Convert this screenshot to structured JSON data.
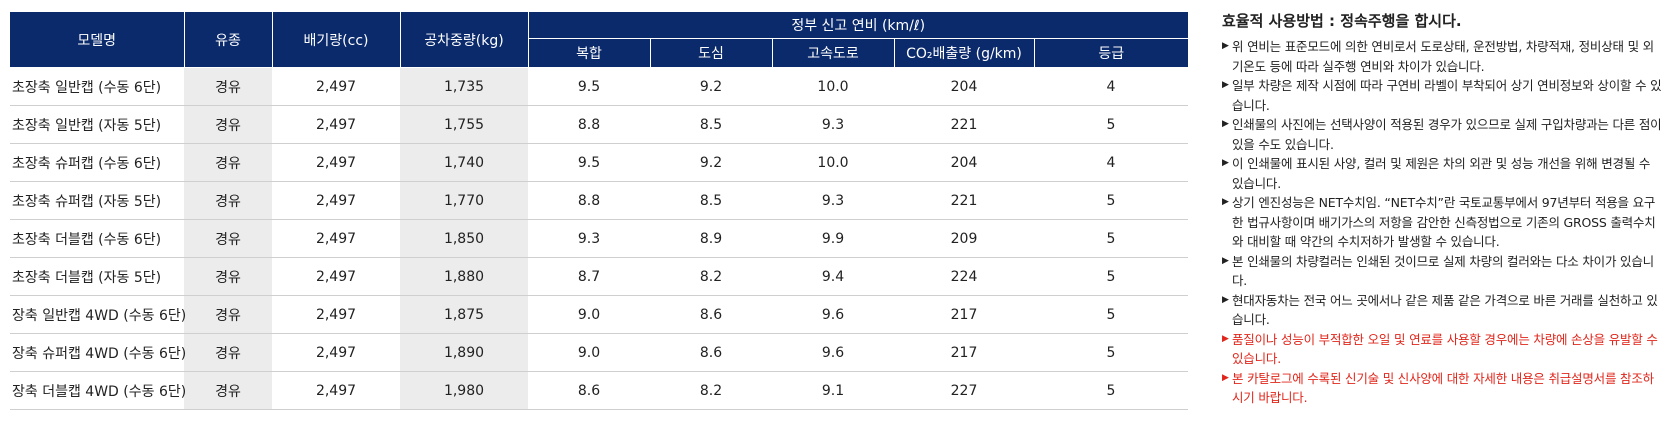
{
  "table": {
    "headers": {
      "model": "모델명",
      "fuel": "유종",
      "displacement": "배기량(cc)",
      "curb_weight": "공차중량(kg)",
      "efficiency_group": "정부 신고 연비 (km/ℓ)",
      "combined": "복합",
      "city": "도심",
      "highway": "고속도로",
      "co2": "CO₂배출량 (g/km)",
      "grade": "등급"
    },
    "rows": [
      {
        "model": "초장축 일반캡 (수동 6단)",
        "fuel": "경유",
        "displacement": "2,497",
        "weight": "1,735",
        "combined": "9.5",
        "city": "9.2",
        "highway": "10.0",
        "co2": "204",
        "grade": "4"
      },
      {
        "model": "초장축 일반캡 (자동 5단)",
        "fuel": "경유",
        "displacement": "2,497",
        "weight": "1,755",
        "combined": "8.8",
        "city": "8.5",
        "highway": "9.3",
        "co2": "221",
        "grade": "5"
      },
      {
        "model": "초장축 슈퍼캡 (수동 6단)",
        "fuel": "경유",
        "displacement": "2,497",
        "weight": "1,740",
        "combined": "9.5",
        "city": "9.2",
        "highway": "10.0",
        "co2": "204",
        "grade": "4"
      },
      {
        "model": "초장축 슈퍼캡 (자동 5단)",
        "fuel": "경유",
        "displacement": "2,497",
        "weight": "1,770",
        "combined": "8.8",
        "city": "8.5",
        "highway": "9.3",
        "co2": "221",
        "grade": "5"
      },
      {
        "model": "초장축 더블캡 (수동 6단)",
        "fuel": "경유",
        "displacement": "2,497",
        "weight": "1,850",
        "combined": "9.3",
        "city": "8.9",
        "highway": "9.9",
        "co2": "209",
        "grade": "5"
      },
      {
        "model": "초장축 더블캡 (자동 5단)",
        "fuel": "경유",
        "displacement": "2,497",
        "weight": "1,880",
        "combined": "8.7",
        "city": "8.2",
        "highway": "9.4",
        "co2": "224",
        "grade": "5"
      },
      {
        "model": "장축 일반캡 4WD (수동 6단)",
        "fuel": "경유",
        "displacement": "2,497",
        "weight": "1,875",
        "combined": "9.0",
        "city": "8.6",
        "highway": "9.6",
        "co2": "217",
        "grade": "5"
      },
      {
        "model": "장축 슈퍼캡 4WD (수동 6단)",
        "fuel": "경유",
        "displacement": "2,497",
        "weight": "1,890",
        "combined": "9.0",
        "city": "8.6",
        "highway": "9.6",
        "co2": "217",
        "grade": "5"
      },
      {
        "model": "장축 더블캡 4WD (수동 6단)",
        "fuel": "경유",
        "displacement": "2,497",
        "weight": "1,980",
        "combined": "8.6",
        "city": "8.2",
        "highway": "9.1",
        "co2": "227",
        "grade": "5"
      }
    ]
  },
  "notes": {
    "title": "효율적 사용방법 : 정속주행을 합시다.",
    "bullet_symbol": "▶",
    "items": [
      {
        "text": "위 연비는 표준모드에 의한 연비로서 도로상태, 운전방법, 차량적재, 정비상태 및 외기온도 등에 따라 실주행 연비와 차이가 있습니다.",
        "red": false
      },
      {
        "text": "일부 차량은 제작 시점에 따라 구연비 라벨이 부착되어 상기 연비정보와 상이할 수 있습니다.",
        "red": false
      },
      {
        "text": "인쇄물의 사진에는 선택사양이 적용된 경우가 있으므로 실제 구입차량과는 다른 점이 있을 수도 있습니다.",
        "red": false
      },
      {
        "text": "이 인쇄물에 표시된 사양, 컬러 및 제원은 차의 외관 및 성능 개선을 위해 변경될 수 있습니다.",
        "red": false
      },
      {
        "text": "상기 엔진성능은 NET수치임. “NET수치”란 국토교통부에서 97년부터 적용을 요구한 법규사항이며 배기가스의 저항을 감안한 신측정법으로 기존의 GROSS 출력수치와 대비할 때 약간의 수치저하가 발생할 수 있습니다.",
        "red": false
      },
      {
        "text": "본 인쇄물의 차량컬러는 인쇄된 것이므로 실제 차량의 컬러와는 다소 차이가 있습니다.",
        "red": false
      },
      {
        "text": "현대자동차는 전국 어느 곳에서나 같은 제품 같은 가격으로 바른 거래를 실천하고 있습니다.",
        "red": false
      },
      {
        "text": "품질이나 성능이 부적합한 오일 및 연료를 사용할 경우에는 차량에 손상을 유발할 수 있습니다.",
        "red": true
      },
      {
        "text": "본 카탈로그에 수록된 신기술 및 신사양에 대한 자세한 내용은 취급설명서를 참조하시기 바랍니다.",
        "red": true
      }
    ]
  },
  "colors": {
    "header_bg": "#0b2a6b",
    "shade_bg": "#ececec",
    "warning_text": "#e0261b"
  }
}
